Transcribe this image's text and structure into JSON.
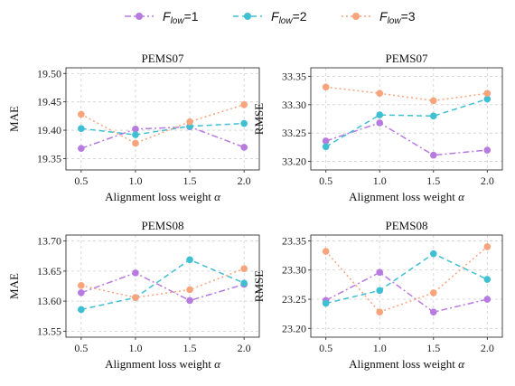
{
  "legend": [
    {
      "label": "F",
      "sub": "low",
      "suffix": "=1",
      "color": "#b77be0",
      "dash": "7 3 2 3"
    },
    {
      "label": "F",
      "sub": "low",
      "suffix": "=2",
      "color": "#3fbfd2",
      "dash": "6 4"
    },
    {
      "label": "F",
      "sub": "low",
      "suffix": "=3",
      "color": "#f7a47c",
      "dash": "2 3"
    }
  ],
  "chart_data": [
    {
      "type": "line",
      "title": "PEMS07",
      "xlabel": "Alignment loss weight",
      "xlabel_symbol": "α",
      "ylabel": "MAE",
      "x": [
        0.5,
        1.0,
        1.5,
        2.0
      ],
      "xticks": [
        "0.5",
        "1.0",
        "1.5",
        "2.0"
      ],
      "ylim": [
        19.33,
        19.51
      ],
      "yticks": [
        "19.35",
        "19.40",
        "19.45",
        "19.50"
      ],
      "grid": true,
      "series": [
        {
          "name": "F_low=1",
          "values": [
            19.368,
            19.402,
            19.406,
            19.37
          ]
        },
        {
          "name": "F_low=2",
          "values": [
            19.403,
            19.392,
            19.407,
            19.412
          ]
        },
        {
          "name": "F_low=3",
          "values": [
            19.428,
            19.377,
            19.415,
            19.445
          ]
        }
      ]
    },
    {
      "type": "line",
      "title": "PEMS07",
      "xlabel": "Alignment loss weight",
      "xlabel_symbol": "α",
      "ylabel": "RMSE",
      "x": [
        0.5,
        1.0,
        1.5,
        2.0
      ],
      "xticks": [
        "0.5",
        "1.0",
        "1.5",
        "2.0"
      ],
      "ylim": [
        33.185,
        33.365
      ],
      "yticks": [
        "33.20",
        "33.25",
        "33.30",
        "33.35"
      ],
      "grid": true,
      "series": [
        {
          "name": "F_low=1",
          "values": [
            33.236,
            33.268,
            33.211,
            33.22
          ]
        },
        {
          "name": "F_low=2",
          "values": [
            33.226,
            33.282,
            33.28,
            33.31
          ]
        },
        {
          "name": "F_low=3",
          "values": [
            33.331,
            33.32,
            33.307,
            33.32
          ]
        }
      ]
    },
    {
      "type": "line",
      "title": "PEMS08",
      "xlabel": "Alignment loss weight",
      "xlabel_symbol": "α",
      "ylabel": "MAE",
      "x": [
        0.5,
        1.0,
        1.5,
        2.0
      ],
      "xticks": [
        "0.5",
        "1.0",
        "1.5",
        "2.0"
      ],
      "ylim": [
        13.54,
        13.71
      ],
      "yticks": [
        "13.55",
        "13.60",
        "13.65",
        "13.70"
      ],
      "grid": true,
      "series": [
        {
          "name": "F_low=1",
          "values": [
            13.614,
            13.647,
            13.601,
            13.628
          ]
        },
        {
          "name": "F_low=2",
          "values": [
            13.586,
            13.606,
            13.669,
            13.63
          ]
        },
        {
          "name": "F_low=3",
          "values": [
            13.626,
            13.606,
            13.619,
            13.654
          ]
        }
      ]
    },
    {
      "type": "line",
      "title": "PEMS08",
      "xlabel": "Alignment loss weight",
      "xlabel_symbol": "α",
      "ylabel": "RMSE",
      "x": [
        0.5,
        1.0,
        1.5,
        2.0
      ],
      "xticks": [
        "0.5",
        "1.0",
        "1.5",
        "2.0"
      ],
      "ylim": [
        23.185,
        23.36
      ],
      "yticks": [
        "23.20",
        "23.25",
        "23.30",
        "23.35"
      ],
      "grid": true,
      "series": [
        {
          "name": "F_low=1",
          "values": [
            23.248,
            23.296,
            23.228,
            23.25
          ]
        },
        {
          "name": "F_low=2",
          "values": [
            23.243,
            23.265,
            23.328,
            23.284
          ]
        },
        {
          "name": "F_low=3",
          "values": [
            23.332,
            23.228,
            23.261,
            23.34
          ]
        }
      ]
    }
  ]
}
